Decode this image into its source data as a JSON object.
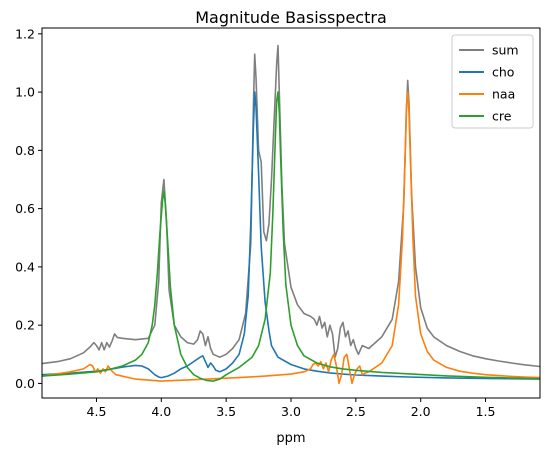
{
  "chart_data": {
    "type": "line",
    "title": "Magnitude Basisspectra",
    "xlabel": "ppm",
    "ylabel": "",
    "xlim": [
      4.92,
      1.08
    ],
    "ylim": [
      -0.05,
      1.22
    ],
    "x_inverted": true,
    "grid": false,
    "legend_placement": "top-right",
    "xticks": [
      {
        "value": 4.5,
        "label": "4.5"
      },
      {
        "value": 4.0,
        "label": "4.0"
      },
      {
        "value": 3.5,
        "label": "3.5"
      },
      {
        "value": 3.0,
        "label": "3.0"
      },
      {
        "value": 2.5,
        "label": "2.5"
      },
      {
        "value": 2.0,
        "label": "2.0"
      },
      {
        "value": 1.5,
        "label": "1.5"
      }
    ],
    "yticks": [
      {
        "value": 0.0,
        "label": "0.0"
      },
      {
        "value": 0.2,
        "label": "0.2"
      },
      {
        "value": 0.4,
        "label": "0.4"
      },
      {
        "value": 0.6,
        "label": "0.6"
      },
      {
        "value": 0.8,
        "label": "0.8"
      },
      {
        "value": 1.0,
        "label": "1.0"
      },
      {
        "value": 1.2,
        "label": "1.2"
      }
    ],
    "series": [
      {
        "name": "sum",
        "color": "#7f7f7f",
        "points": [
          [
            4.92,
            0.068
          ],
          [
            4.8,
            0.075
          ],
          [
            4.7,
            0.085
          ],
          [
            4.6,
            0.105
          ],
          [
            4.55,
            0.125
          ],
          [
            4.52,
            0.14
          ],
          [
            4.5,
            0.13
          ],
          [
            4.48,
            0.115
          ],
          [
            4.46,
            0.14
          ],
          [
            4.44,
            0.115
          ],
          [
            4.42,
            0.14
          ],
          [
            4.4,
            0.125
          ],
          [
            4.38,
            0.145
          ],
          [
            4.36,
            0.17
          ],
          [
            4.34,
            0.158
          ],
          [
            4.3,
            0.155
          ],
          [
            4.2,
            0.15
          ],
          [
            4.1,
            0.155
          ],
          [
            4.05,
            0.2
          ],
          [
            4.02,
            0.35
          ],
          [
            4.0,
            0.62
          ],
          [
            3.98,
            0.7
          ],
          [
            3.96,
            0.56
          ],
          [
            3.94,
            0.32
          ],
          [
            3.9,
            0.2
          ],
          [
            3.85,
            0.16
          ],
          [
            3.8,
            0.14
          ],
          [
            3.75,
            0.135
          ],
          [
            3.72,
            0.15
          ],
          [
            3.7,
            0.18
          ],
          [
            3.68,
            0.17
          ],
          [
            3.66,
            0.13
          ],
          [
            3.64,
            0.16
          ],
          [
            3.62,
            0.12
          ],
          [
            3.6,
            0.1
          ],
          [
            3.55,
            0.09
          ],
          [
            3.5,
            0.1
          ],
          [
            3.45,
            0.12
          ],
          [
            3.4,
            0.15
          ],
          [
            3.35,
            0.24
          ],
          [
            3.31,
            0.48
          ],
          [
            3.29,
            0.95
          ],
          [
            3.28,
            1.13
          ],
          [
            3.27,
            1.05
          ],
          [
            3.25,
            0.8
          ],
          [
            3.23,
            0.76
          ],
          [
            3.21,
            0.52
          ],
          [
            3.19,
            0.49
          ],
          [
            3.17,
            0.55
          ],
          [
            3.15,
            0.7
          ],
          [
            3.13,
            0.9
          ],
          [
            3.11,
            1.1
          ],
          [
            3.1,
            1.16
          ],
          [
            3.09,
            1.0
          ],
          [
            3.07,
            0.68
          ],
          [
            3.05,
            0.48
          ],
          [
            3.0,
            0.33
          ],
          [
            2.95,
            0.27
          ],
          [
            2.9,
            0.24
          ],
          [
            2.85,
            0.23
          ],
          [
            2.82,
            0.22
          ],
          [
            2.8,
            0.2
          ],
          [
            2.78,
            0.23
          ],
          [
            2.76,
            0.19
          ],
          [
            2.74,
            0.21
          ],
          [
            2.72,
            0.16
          ],
          [
            2.7,
            0.2
          ],
          [
            2.68,
            0.17
          ],
          [
            2.66,
            0.09
          ],
          [
            2.64,
            0.12
          ],
          [
            2.62,
            0.19
          ],
          [
            2.6,
            0.21
          ],
          [
            2.58,
            0.16
          ],
          [
            2.56,
            0.18
          ],
          [
            2.54,
            0.13
          ],
          [
            2.52,
            0.15
          ],
          [
            2.5,
            0.12
          ],
          [
            2.48,
            0.1
          ],
          [
            2.45,
            0.13
          ],
          [
            2.4,
            0.12
          ],
          [
            2.3,
            0.16
          ],
          [
            2.22,
            0.22
          ],
          [
            2.17,
            0.35
          ],
          [
            2.13,
            0.62
          ],
          [
            2.11,
            0.93
          ],
          [
            2.1,
            1.04
          ],
          [
            2.09,
            0.96
          ],
          [
            2.07,
            0.65
          ],
          [
            2.04,
            0.4
          ],
          [
            2.0,
            0.26
          ],
          [
            1.95,
            0.19
          ],
          [
            1.9,
            0.16
          ],
          [
            1.8,
            0.13
          ],
          [
            1.7,
            0.11
          ],
          [
            1.6,
            0.095
          ],
          [
            1.5,
            0.085
          ],
          [
            1.4,
            0.077
          ],
          [
            1.3,
            0.07
          ],
          [
            1.2,
            0.064
          ],
          [
            1.08,
            0.058
          ]
        ]
      },
      {
        "name": "cho",
        "color": "#1f77b4",
        "points": [
          [
            4.92,
            0.03
          ],
          [
            4.7,
            0.035
          ],
          [
            4.5,
            0.042
          ],
          [
            4.4,
            0.048
          ],
          [
            4.3,
            0.056
          ],
          [
            4.2,
            0.062
          ],
          [
            4.15,
            0.06
          ],
          [
            4.1,
            0.05
          ],
          [
            4.05,
            0.03
          ],
          [
            4.02,
            0.022
          ],
          [
            4.0,
            0.02
          ],
          [
            3.95,
            0.025
          ],
          [
            3.9,
            0.035
          ],
          [
            3.85,
            0.05
          ],
          [
            3.8,
            0.06
          ],
          [
            3.75,
            0.075
          ],
          [
            3.7,
            0.09
          ],
          [
            3.68,
            0.095
          ],
          [
            3.66,
            0.075
          ],
          [
            3.64,
            0.055
          ],
          [
            3.62,
            0.07
          ],
          [
            3.6,
            0.06
          ],
          [
            3.58,
            0.045
          ],
          [
            3.55,
            0.04
          ],
          [
            3.5,
            0.05
          ],
          [
            3.45,
            0.07
          ],
          [
            3.4,
            0.1
          ],
          [
            3.36,
            0.17
          ],
          [
            3.33,
            0.3
          ],
          [
            3.31,
            0.55
          ],
          [
            3.29,
            0.88
          ],
          [
            3.28,
            1.0
          ],
          [
            3.27,
            0.95
          ],
          [
            3.25,
            0.72
          ],
          [
            3.23,
            0.47
          ],
          [
            3.2,
            0.28
          ],
          [
            3.17,
            0.18
          ],
          [
            3.15,
            0.13
          ],
          [
            3.1,
            0.09
          ],
          [
            3.0,
            0.065
          ],
          [
            2.9,
            0.05
          ],
          [
            2.8,
            0.042
          ],
          [
            2.7,
            0.036
          ],
          [
            2.6,
            0.032
          ],
          [
            2.5,
            0.029
          ],
          [
            2.3,
            0.025
          ],
          [
            2.1,
            0.022
          ],
          [
            1.8,
            0.019
          ],
          [
            1.5,
            0.017
          ],
          [
            1.08,
            0.015
          ]
        ]
      },
      {
        "name": "naa",
        "color": "#ff7f0e",
        "points": [
          [
            4.92,
            0.025
          ],
          [
            4.7,
            0.04
          ],
          [
            4.6,
            0.05
          ],
          [
            4.55,
            0.065
          ],
          [
            4.53,
            0.06
          ],
          [
            4.51,
            0.04
          ],
          [
            4.49,
            0.05
          ],
          [
            4.47,
            0.035
          ],
          [
            4.45,
            0.05
          ],
          [
            4.43,
            0.04
          ],
          [
            4.41,
            0.06
          ],
          [
            4.38,
            0.042
          ],
          [
            4.35,
            0.03
          ],
          [
            4.2,
            0.015
          ],
          [
            4.0,
            0.008
          ],
          [
            3.8,
            0.012
          ],
          [
            3.6,
            0.016
          ],
          [
            3.4,
            0.02
          ],
          [
            3.2,
            0.025
          ],
          [
            3.0,
            0.032
          ],
          [
            2.9,
            0.04
          ],
          [
            2.85,
            0.05
          ],
          [
            2.83,
            0.065
          ],
          [
            2.81,
            0.07
          ],
          [
            2.79,
            0.06
          ],
          [
            2.77,
            0.075
          ],
          [
            2.75,
            0.05
          ],
          [
            2.73,
            0.07
          ],
          [
            2.71,
            0.04
          ],
          [
            2.69,
            0.08
          ],
          [
            2.67,
            0.1
          ],
          [
            2.65,
            0.06
          ],
          [
            2.63,
            0.0
          ],
          [
            2.61,
            0.03
          ],
          [
            2.59,
            0.09
          ],
          [
            2.57,
            0.1
          ],
          [
            2.55,
            0.05
          ],
          [
            2.53,
            0.0
          ],
          [
            2.51,
            0.03
          ],
          [
            2.49,
            0.05
          ],
          [
            2.47,
            0.06
          ],
          [
            2.45,
            0.03
          ],
          [
            2.43,
            0.035
          ],
          [
            2.4,
            0.04
          ],
          [
            2.3,
            0.07
          ],
          [
            2.22,
            0.13
          ],
          [
            2.17,
            0.27
          ],
          [
            2.14,
            0.5
          ],
          [
            2.12,
            0.78
          ],
          [
            2.11,
            0.95
          ],
          [
            2.1,
            1.0
          ],
          [
            2.09,
            0.93
          ],
          [
            2.08,
            0.78
          ],
          [
            2.06,
            0.5
          ],
          [
            2.04,
            0.3
          ],
          [
            2.0,
            0.17
          ],
          [
            1.95,
            0.11
          ],
          [
            1.9,
            0.08
          ],
          [
            1.8,
            0.055
          ],
          [
            1.7,
            0.042
          ],
          [
            1.6,
            0.035
          ],
          [
            1.5,
            0.03
          ],
          [
            1.4,
            0.027
          ],
          [
            1.3,
            0.024
          ],
          [
            1.2,
            0.022
          ],
          [
            1.08,
            0.02
          ]
        ]
      },
      {
        "name": "cre",
        "color": "#2ca02c",
        "points": [
          [
            4.92,
            0.025
          ],
          [
            4.7,
            0.032
          ],
          [
            4.5,
            0.04
          ],
          [
            4.4,
            0.048
          ],
          [
            4.3,
            0.06
          ],
          [
            4.2,
            0.08
          ],
          [
            4.15,
            0.1
          ],
          [
            4.1,
            0.14
          ],
          [
            4.07,
            0.2
          ],
          [
            4.05,
            0.27
          ],
          [
            4.03,
            0.38
          ],
          [
            4.01,
            0.52
          ],
          [
            3.99,
            0.63
          ],
          [
            3.98,
            0.66
          ],
          [
            3.97,
            0.62
          ],
          [
            3.95,
            0.48
          ],
          [
            3.93,
            0.33
          ],
          [
            3.9,
            0.2
          ],
          [
            3.85,
            0.1
          ],
          [
            3.8,
            0.055
          ],
          [
            3.75,
            0.03
          ],
          [
            3.7,
            0.018
          ],
          [
            3.65,
            0.01
          ],
          [
            3.6,
            0.008
          ],
          [
            3.55,
            0.015
          ],
          [
            3.5,
            0.03
          ],
          [
            3.4,
            0.055
          ],
          [
            3.3,
            0.09
          ],
          [
            3.25,
            0.13
          ],
          [
            3.2,
            0.22
          ],
          [
            3.16,
            0.38
          ],
          [
            3.14,
            0.58
          ],
          [
            3.12,
            0.85
          ],
          [
            3.11,
            0.97
          ],
          [
            3.1,
            1.0
          ],
          [
            3.09,
            0.93
          ],
          [
            3.08,
            0.78
          ],
          [
            3.06,
            0.52
          ],
          [
            3.04,
            0.34
          ],
          [
            3.0,
            0.2
          ],
          [
            2.95,
            0.13
          ],
          [
            2.9,
            0.095
          ],
          [
            2.8,
            0.07
          ],
          [
            2.7,
            0.057
          ],
          [
            2.6,
            0.05
          ],
          [
            2.5,
            0.045
          ],
          [
            2.3,
            0.038
          ],
          [
            2.1,
            0.033
          ],
          [
            1.8,
            0.026
          ],
          [
            1.5,
            0.021
          ],
          [
            1.08,
            0.016
          ]
        ]
      }
    ]
  }
}
